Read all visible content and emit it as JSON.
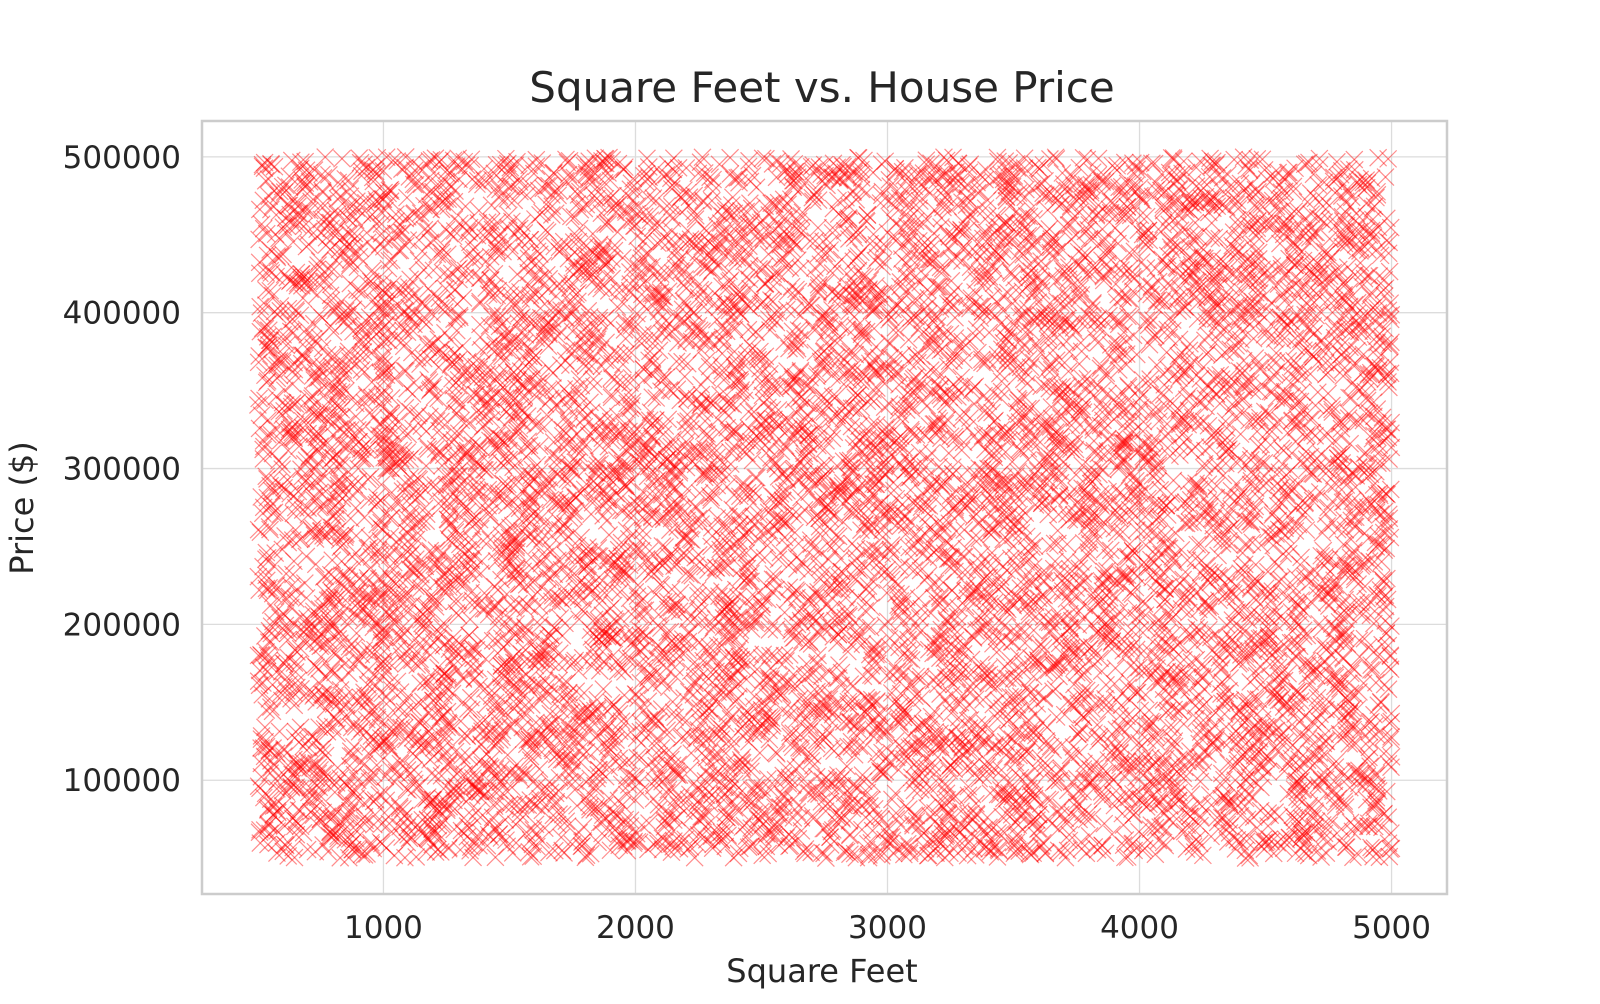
{
  "chart_data": {
    "type": "scatter",
    "title": "Square Feet vs. House Price",
    "xlabel": "Square Feet",
    "ylabel": "Price ($)",
    "x_ticks": [
      1000,
      2000,
      3000,
      4000,
      5000
    ],
    "y_ticks": [
      100000,
      200000,
      300000,
      400000,
      500000
    ],
    "xlim": [
      280,
      5220
    ],
    "ylim": [
      27000,
      523000
    ],
    "grid": true,
    "legend": "none",
    "marker": "x",
    "marker_color": "#ff0000",
    "marker_opacity": 0.45,
    "point_count": 10000,
    "series": [
      {
        "name": "",
        "x_range": [
          500,
          5000
        ],
        "y_range": [
          50000,
          500000
        ],
        "distribution": "uniform",
        "points": [
          [
            520,
            495000
          ],
          [
            760,
            470000
          ],
          [
            1400,
            485000
          ],
          [
            2250,
            410000
          ],
          [
            3700,
            455000
          ],
          [
            4550,
            490000
          ],
          [
            4900,
            470000
          ],
          [
            650,
            360000
          ],
          [
            1300,
            370000
          ],
          [
            1650,
            350000
          ],
          [
            2200,
            330000
          ],
          [
            3350,
            385000
          ],
          [
            4200,
            380000
          ],
          [
            4650,
            360000
          ],
          [
            900,
            300000
          ],
          [
            1550,
            260000
          ],
          [
            2300,
            250000
          ],
          [
            2950,
            310000
          ],
          [
            3550,
            240000
          ],
          [
            4050,
            230000
          ],
          [
            4750,
            220000
          ],
          [
            620,
            190000
          ],
          [
            1150,
            175000
          ],
          [
            1900,
            210000
          ],
          [
            2550,
            180000
          ],
          [
            3100,
            150000
          ],
          [
            3850,
            170000
          ],
          [
            4400,
            140000
          ],
          [
            5000,
            115000
          ],
          [
            750,
            75000
          ],
          [
            1350,
            90000
          ],
          [
            2050,
            110000
          ],
          [
            2800,
            95000
          ],
          [
            3500,
            60000
          ],
          [
            4500,
            60000
          ]
        ]
      }
    ]
  }
}
